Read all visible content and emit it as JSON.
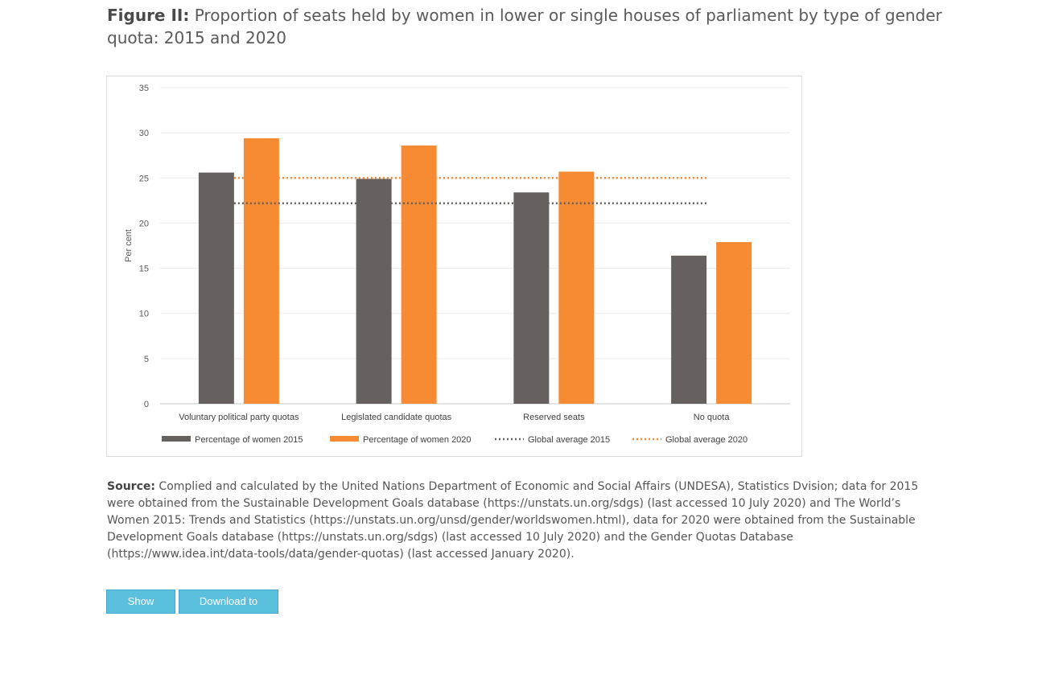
{
  "figure": {
    "label": "Figure II:",
    "title": "Proportion of seats held by women in lower or single houses of parliament by type of gender quota: 2015 and 2020"
  },
  "source": {
    "label": "Source:",
    "text": "Complied and calculated by the United Nations Department of Economic and Social Affairs (UNDESA), Statistics Dvision; data for 2015 were obtained from the Sustainable Development Goals database (https://unstats.un.org/sdgs) (last accessed 10 July 2020) and The World’s Women 2015: Trends and Statistics (https://unstats.un.org/unsd/gender/worldswomen.html), data for 2020 were obtained from the Sustainable Development Goals database (https://unstats.un.org/sdgs) (last accessed 10 July 2020) and the Gender Quotas Database (https://www.idea.int/data-tools/data/gender-quotas) (last accessed January 2020)."
  },
  "buttons": {
    "show_data": "Show Data",
    "download_csv": "Download to CSV"
  },
  "chart_data": {
    "type": "bar",
    "title": "",
    "xlabel": "",
    "ylabel": "Per cent",
    "ylim": [
      0,
      35
    ],
    "yticks": [
      0,
      5,
      10,
      15,
      20,
      25,
      30,
      35
    ],
    "grid": true,
    "legend_position": "bottom",
    "categories": [
      "Voluntary political party quotas",
      "Legislated candidate quotas",
      "Reserved seats",
      "No quota"
    ],
    "series": [
      {
        "name": "Percentage of women 2015",
        "values": [
          25.6,
          24.9,
          23.4,
          16.4
        ],
        "color": "#66615e"
      },
      {
        "name": "Percentage of women 2020",
        "values": [
          29.4,
          28.6,
          25.7,
          17.9
        ],
        "color": "#f68b33"
      }
    ],
    "reference_lines": [
      {
        "name": "Global average 2015",
        "value": 22.2,
        "color": "#66615e",
        "style": "dotted"
      },
      {
        "name": "Global average 2020",
        "value": 25.0,
        "color": "#f68b33",
        "style": "dotted"
      }
    ]
  }
}
